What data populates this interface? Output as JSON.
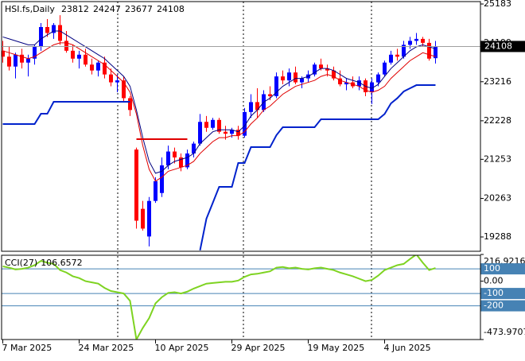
{
  "chart_data": [
    {
      "type": "candlestick",
      "symbol": "HSI.fs,Daily",
      "categories": [
        "7 Mar 2025",
        null,
        null,
        null,
        null,
        null,
        null,
        null,
        null,
        null,
        null,
        null,
        "24 Mar 2025",
        null,
        null,
        null,
        null,
        null,
        null,
        null,
        null,
        null,
        null,
        null,
        "10 Apr 2025",
        null,
        null,
        null,
        null,
        null,
        null,
        null,
        null,
        null,
        null,
        null,
        "29 Apr 2025",
        null,
        null,
        null,
        null,
        null,
        null,
        null,
        null,
        null,
        null,
        null,
        "19 May 2025",
        null,
        null,
        null,
        null,
        null,
        null,
        null,
        null,
        null,
        null,
        null,
        "4 Jun 2025",
        null,
        null,
        null,
        null,
        null,
        null,
        null,
        null
      ],
      "open": [
        24000,
        23850,
        23600,
        23900,
        23700,
        23800,
        24100,
        24600,
        24450,
        24650,
        24250,
        24000,
        23800,
        23900,
        23650,
        23500,
        23700,
        23400,
        23200,
        23250,
        22800,
        21500,
        20000,
        19300,
        20200,
        20400,
        21100,
        21450,
        21300,
        21050,
        21400,
        21650,
        22200,
        22050,
        22250,
        21950,
        21900,
        22000,
        21850,
        22450,
        22700,
        22500,
        22900,
        22850,
        23350,
        23250,
        23450,
        23200,
        23300,
        23400,
        23650,
        23550,
        23500,
        23300,
        23150,
        23200,
        23100,
        23250,
        22950,
        23200,
        23400,
        23700,
        23900,
        23850,
        24150,
        24250,
        24300,
        24200,
        23812
      ],
      "high": [
        24250,
        24100,
        23950,
        24050,
        23900,
        24150,
        24700,
        24800,
        24700,
        24900,
        24500,
        24150,
        24000,
        24050,
        23800,
        23750,
        23850,
        23550,
        23400,
        23350,
        22850,
        21550,
        20200,
        20300,
        20800,
        21300,
        21600,
        21550,
        21400,
        21500,
        21700,
        22400,
        22350,
        22300,
        22300,
        22100,
        22050,
        22100,
        22550,
        22900,
        23050,
        23000,
        23100,
        23450,
        23500,
        23550,
        23600,
        23350,
        23500,
        23700,
        23800,
        23650,
        23600,
        23500,
        23300,
        23350,
        23350,
        23300,
        23300,
        23450,
        23750,
        24000,
        24050,
        24250,
        24350,
        24450,
        24350,
        24300,
        24247
      ],
      "low": [
        23700,
        23500,
        23300,
        23550,
        23350,
        23650,
        24000,
        24350,
        24300,
        24150,
        23950,
        23700,
        23550,
        23600,
        23400,
        23350,
        23300,
        23100,
        22950,
        22700,
        22350,
        19500,
        19450,
        19050,
        20150,
        20300,
        21000,
        21150,
        20950,
        21000,
        21300,
        21600,
        21950,
        22000,
        21900,
        21750,
        21800,
        21750,
        21800,
        22300,
        22300,
        22450,
        22750,
        22800,
        23150,
        23100,
        23150,
        23050,
        23200,
        23350,
        23500,
        23350,
        23250,
        23100,
        23000,
        23050,
        23000,
        22850,
        22650,
        23100,
        23350,
        23650,
        23750,
        23800,
        24050,
        24150,
        24100,
        23750,
        23677
      ],
      "close": [
        23850,
        23600,
        23900,
        23700,
        23800,
        24100,
        24600,
        24450,
        24650,
        24250,
        24000,
        23800,
        23900,
        23650,
        23500,
        23700,
        23400,
        23200,
        23250,
        22800,
        22500,
        19700,
        19500,
        20200,
        20700,
        21100,
        21450,
        21300,
        21050,
        21400,
        21650,
        22200,
        22050,
        22250,
        21950,
        21900,
        22000,
        21850,
        22450,
        22700,
        22500,
        22900,
        22850,
        23350,
        23250,
        23450,
        23200,
        23300,
        23400,
        23650,
        23550,
        23500,
        23300,
        23150,
        23200,
        23100,
        23250,
        22950,
        23200,
        23400,
        23700,
        23900,
        23850,
        24150,
        24250,
        24300,
        24200,
        23800,
        24108
      ],
      "up_color": "#0000ff",
      "down_color": "#ff0000",
      "overlays": [
        {
          "color": "#000080",
          "values": [
            24350,
            24300,
            24250,
            24200,
            24150,
            24150,
            24300,
            24400,
            24500,
            24500,
            24400,
            24300,
            24200,
            24100,
            24000,
            23900,
            23800,
            23650,
            23500,
            23350,
            23100,
            22500,
            21800,
            21200,
            20900,
            20950,
            21100,
            21200,
            21250,
            21300,
            21400,
            21650,
            21800,
            21950,
            22000,
            22000,
            22000,
            21950,
            22100,
            22350,
            22500,
            22700,
            22800,
            22950,
            23100,
            23200,
            23300,
            23300,
            23350,
            23450,
            23550,
            23550,
            23500,
            23400,
            23300,
            23250,
            23200,
            23100,
            23050,
            23150,
            23350,
            23550,
            23700,
            23850,
            24000,
            24100,
            24150,
            24100,
            24050
          ]
        },
        {
          "color": "#e00000",
          "values": [
            24000,
            23950,
            23900,
            23850,
            23800,
            23850,
            23950,
            24050,
            24150,
            24200,
            24200,
            24150,
            24050,
            23950,
            23850,
            23750,
            23650,
            23500,
            23350,
            23200,
            22950,
            22400,
            21600,
            21000,
            20700,
            20800,
            20950,
            21000,
            21050,
            21100,
            21200,
            21400,
            21550,
            21700,
            21800,
            21800,
            21850,
            21850,
            21950,
            22150,
            22300,
            22500,
            22600,
            22750,
            22900,
            23000,
            23100,
            23150,
            23200,
            23250,
            23350,
            23400,
            23350,
            23250,
            23200,
            23150,
            23100,
            23000,
            22950,
            23000,
            23100,
            23300,
            23450,
            23600,
            23750,
            23850,
            23950,
            23900,
            23850
          ]
        },
        {
          "color": "#0022cc",
          "values": [
            22145,
            22145,
            22145,
            22145,
            22145,
            22145,
            22406,
            22406,
            22708,
            22708,
            22708,
            22708,
            22708,
            22708,
            22708,
            22708,
            22708,
            22708,
            22708,
            22708,
            22708,
            null,
            null,
            null,
            null,
            null,
            null,
            null,
            null,
            null,
            null,
            18950,
            19750,
            20152,
            20555,
            20555,
            20555,
            21159,
            21159,
            21561,
            21561,
            21561,
            21561,
            21863,
            22064,
            22064,
            22064,
            22064,
            22064,
            22064,
            22265,
            22265,
            22265,
            22265,
            22265,
            22265,
            22265,
            22265,
            22265,
            22265,
            22400,
            22668,
            22800,
            22969,
            23050,
            23130,
            23130,
            23130,
            23130
          ]
        },
        {
          "color": "#e00000",
          "values": [
            null,
            null,
            null,
            null,
            null,
            null,
            null,
            null,
            null,
            null,
            null,
            null,
            null,
            null,
            null,
            null,
            null,
            null,
            null,
            null,
            null,
            21762,
            21762,
            21762,
            21762,
            21762,
            21762,
            21762,
            21762,
            21762,
            null,
            null,
            null,
            null,
            null,
            null,
            null,
            null,
            null,
            null,
            null,
            null,
            null,
            null,
            null,
            null,
            null,
            null,
            null,
            null,
            null,
            null,
            null,
            null,
            null,
            null,
            null,
            null,
            null,
            null,
            null,
            null,
            null,
            null,
            null,
            null,
            null,
            null,
            null
          ]
        }
      ],
      "ylim": [
        18926,
        25284
      ],
      "yticks": [
        25183,
        24199,
        23216,
        22228,
        21253,
        20263,
        19288
      ],
      "price_line_color": "#a0a0a0"
    },
    {
      "type": "line",
      "name": "CCI(27)",
      "values": [
        120,
        110,
        95,
        100,
        110,
        130,
        165,
        150,
        140,
        90,
        70,
        40,
        25,
        0,
        -10,
        -20,
        -55,
        -80,
        -90,
        -100,
        -160,
        -473.9707,
        -380,
        -300,
        -180,
        -130,
        -95,
        -90,
        -100,
        -85,
        -60,
        -40,
        -20,
        -15,
        -10,
        -5,
        -5,
        5,
        35,
        55,
        60,
        70,
        80,
        110,
        115,
        105,
        110,
        100,
        95,
        105,
        110,
        100,
        90,
        70,
        55,
        40,
        20,
        0,
        10,
        45,
        90,
        110,
        130,
        140,
        180,
        216.9216,
        150,
        90,
        106.6572
      ],
      "color": "#7ed321",
      "ylim": [
        -473.9707,
        216.9216
      ],
      "yticks": [
        216.9216,
        100,
        {
          "value": 0,
          "label": "0.00"
        },
        -100,
        -200,
        -473.9707
      ],
      "level_color": "#4682b4"
    }
  ]
}
